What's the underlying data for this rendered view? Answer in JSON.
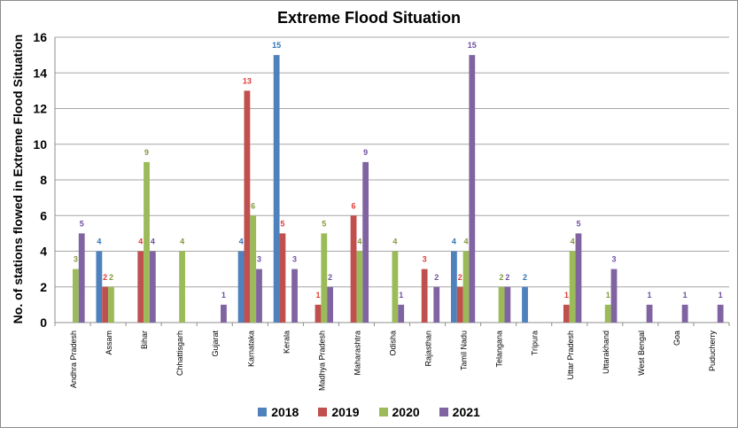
{
  "chart_data": {
    "type": "bar",
    "title": "Extreme Flood Situation",
    "xlabel": "",
    "ylabel": "No. of stations flowed in Extreme Flood Situation",
    "ylim": [
      0,
      16
    ],
    "yticks": [
      0,
      2,
      4,
      6,
      8,
      10,
      12,
      14,
      16
    ],
    "legend_position": "bottom",
    "categories": [
      "Andhra Pradesh",
      "Assam",
      "Bihar",
      "Chhattisgarh",
      "Gujarat",
      "Karnataka",
      "Kerala",
      "Madhya Pradesh",
      "Maharashtra",
      "Odisha",
      "Rajasthan",
      "Tamil Nadu",
      "Telangana",
      "Tripura",
      "Uttar Pradesh",
      "Uttarakhand",
      "West Bengal",
      "Goa",
      "Puducherry"
    ],
    "series": [
      {
        "name": "2018",
        "color": "#4f81bd",
        "label_color": "#2e75b6",
        "values": [
          null,
          4,
          null,
          null,
          null,
          4,
          15,
          null,
          null,
          null,
          null,
          4,
          null,
          2,
          null,
          null,
          null,
          null,
          null
        ]
      },
      {
        "name": "2019",
        "color": "#c0504d",
        "label_color": "#e03b36",
        "values": [
          null,
          2,
          4,
          null,
          null,
          13,
          5,
          1,
          6,
          null,
          3,
          2,
          null,
          null,
          1,
          null,
          null,
          null,
          null
        ]
      },
      {
        "name": "2020",
        "color": "#9bbb59",
        "label_color": "#7f9a3a",
        "values": [
          3,
          2,
          9,
          4,
          null,
          6,
          null,
          5,
          4,
          4,
          null,
          4,
          2,
          null,
          4,
          1,
          null,
          null,
          null
        ]
      },
      {
        "name": "2021",
        "color": "#8064a2",
        "label_color": "#7050a0",
        "values": [
          5,
          null,
          4,
          null,
          1,
          3,
          3,
          2,
          9,
          1,
          2,
          15,
          2,
          null,
          5,
          3,
          1,
          1,
          1
        ]
      }
    ]
  }
}
